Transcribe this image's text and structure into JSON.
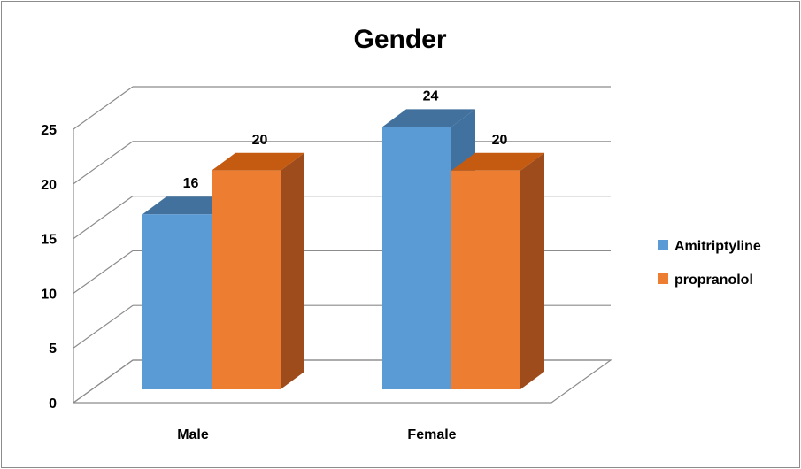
{
  "chart_data": {
    "type": "bar",
    "title": "Gender",
    "categories": [
      "Male",
      "Female"
    ],
    "series": [
      {
        "name": "Amitriptyline",
        "values": [
          16,
          24
        ],
        "color": "#5b9bd5",
        "side": "#41729f",
        "top": "#41719c"
      },
      {
        "name": "propranolol",
        "values": [
          20,
          20
        ],
        "color": "#ed7d31",
        "side": "#9e4c1c",
        "top": "#c55a11"
      }
    ],
    "ylim": [
      0,
      25
    ],
    "yticks": [
      0,
      5,
      10,
      15,
      20,
      25
    ],
    "grid": true,
    "legend": "right",
    "three_d": true
  }
}
